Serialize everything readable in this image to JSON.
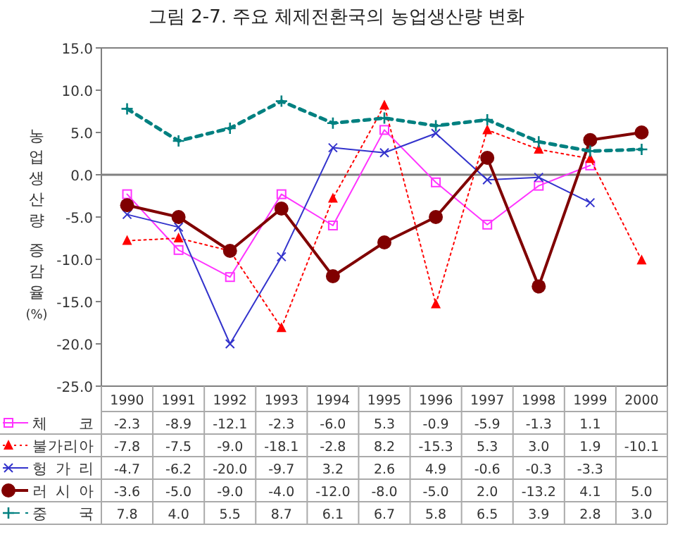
{
  "chart_data": {
    "type": "line",
    "title": "그림 2-7.  주요 체제전환국의 농업생산량 변화",
    "ylabel": "농업생산량 증감율(%)",
    "categories": [
      "1990",
      "1991",
      "1992",
      "1993",
      "1994",
      "1995",
      "1996",
      "1997",
      "1998",
      "1999",
      "2000"
    ],
    "ylim": [
      -25,
      15
    ],
    "yticks": [
      {
        "value": -25,
        "label": "-25.0"
      },
      {
        "value": -20,
        "label": "-20.0"
      },
      {
        "value": -15,
        "label": "-15.0"
      },
      {
        "value": -10,
        "label": "-10.0"
      },
      {
        "value": -5,
        "label": "-5.0"
      },
      {
        "value": 0,
        "label": "0.0"
      },
      {
        "value": 5,
        "label": "5.0"
      },
      {
        "value": 10,
        "label": "10.0"
      },
      {
        "value": 15,
        "label": "15.0"
      }
    ],
    "ref_lines": [
      {
        "axis": "y",
        "value": 0,
        "color": "#808080"
      }
    ],
    "legend": "bottom left",
    "series": [
      {
        "name": "체코",
        "color": "#ff33ff",
        "marker": "square",
        "line_style": "solid",
        "values": [
          -2.3,
          -8.9,
          -12.1,
          -2.3,
          -6.0,
          5.3,
          -0.9,
          -5.9,
          -1.3,
          1.1,
          null
        ],
        "value_labels": [
          "-2.3",
          "-8.9",
          "-12.1",
          "-2.3",
          "-6.0",
          "5.3",
          "-0.9",
          "-5.9",
          "-1.3",
          "1.1",
          null
        ]
      },
      {
        "name": "불가리아",
        "color": "#ff0000",
        "marker": "triangle",
        "line_style": "dotted",
        "values": [
          -7.8,
          -7.5,
          -9.0,
          -18.1,
          -2.8,
          8.2,
          -15.3,
          5.3,
          3.0,
          1.9,
          -10.1
        ],
        "value_labels": [
          "-7.8",
          "-7.5",
          "-9.0",
          "-18.1",
          "-2.8",
          "8.2",
          "-15.3",
          "5.3",
          "3.0",
          "1.9",
          "-10.1"
        ]
      },
      {
        "name": "헝가리",
        "color": "#3333cc",
        "marker": "cross",
        "line_style": "solid",
        "values": [
          -4.7,
          -6.2,
          -20.0,
          -9.7,
          3.2,
          2.6,
          4.9,
          -0.6,
          -0.3,
          -3.3,
          null
        ],
        "value_labels": [
          "-4.7",
          "-6.2",
          "-20.0",
          "-9.7",
          "3.2",
          "2.6",
          "4.9",
          "-0.6",
          "-0.3",
          "-3.3",
          null
        ]
      },
      {
        "name": "러시아",
        "color": "#800000",
        "marker": "circle",
        "line_style": "solid",
        "values": [
          -3.6,
          -5.0,
          -9.0,
          -4.0,
          -12.0,
          -8.0,
          -5.0,
          2.0,
          -13.2,
          4.1,
          5.0
        ],
        "value_labels": [
          "-3.6",
          "-5.0",
          "-9.0",
          "-4.0",
          "-12.0",
          "-8.0",
          "-5.0",
          "2.0",
          "-13.2",
          "4.1",
          "5.0"
        ]
      },
      {
        "name": "중국",
        "color": "#008080",
        "marker": "plus",
        "line_style": "dashed",
        "values": [
          7.8,
          4.0,
          5.5,
          8.7,
          6.1,
          6.7,
          5.8,
          6.5,
          3.9,
          2.8,
          3.0
        ],
        "value_labels": [
          "7.8",
          "4.0",
          "5.5",
          "8.7",
          "6.1",
          "6.7",
          "5.8",
          "6.5",
          "3.9",
          "2.8",
          "3.0"
        ]
      }
    ]
  }
}
